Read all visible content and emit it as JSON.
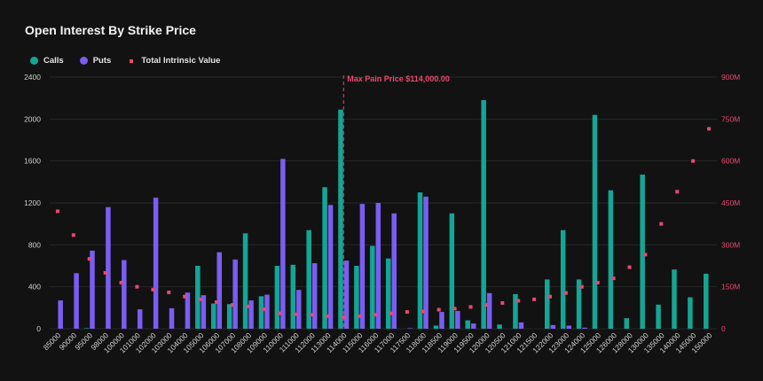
{
  "title": "Open Interest By Strike Price",
  "legend": {
    "calls": "Calls",
    "puts": "Puts",
    "intrinsic": "Total Intrinsic Value"
  },
  "colors": {
    "calls": "#14a595",
    "puts": "#7a5df2",
    "intrinsic": "#e8496f",
    "background": "#121212"
  },
  "max_pain": {
    "label": "Max Pain Price $114,000.00",
    "strike": "114000"
  },
  "chart_data": {
    "type": "bar",
    "title": "Open Interest By Strike Price",
    "categories": [
      "85000",
      "90000",
      "95000",
      "98000",
      "100000",
      "101000",
      "102000",
      "103000",
      "104000",
      "105000",
      "106000",
      "107000",
      "108000",
      "109000",
      "110000",
      "111000",
      "112000",
      "113000",
      "114000",
      "115000",
      "116000",
      "117000",
      "117500",
      "118000",
      "118500",
      "119000",
      "119500",
      "120000",
      "120500",
      "121000",
      "121500",
      "122000",
      "123000",
      "124000",
      "125000",
      "126000",
      "128000",
      "130000",
      "135000",
      "140000",
      "145000",
      "150000"
    ],
    "series": [
      {
        "name": "Calls",
        "axis": "left",
        "values": [
          0,
          0,
          5,
          0,
          0,
          0,
          0,
          0,
          0,
          600,
          240,
          235,
          910,
          310,
          600,
          610,
          940,
          1350,
          2090,
          600,
          790,
          670,
          0,
          1300,
          30,
          1100,
          80,
          2180,
          40,
          330,
          0,
          470,
          940,
          470,
          2040,
          1320,
          100,
          1470,
          230,
          565,
          300,
          525
        ]
      },
      {
        "name": "Puts",
        "axis": "left",
        "values": [
          270,
          530,
          745,
          1160,
          655,
          185,
          1250,
          195,
          345,
          320,
          730,
          660,
          270,
          325,
          1620,
          370,
          625,
          1180,
          650,
          1190,
          1200,
          1100,
          5,
          1260,
          160,
          170,
          50,
          340,
          0,
          60,
          0,
          35,
          30,
          10,
          0,
          0,
          0,
          0,
          0,
          0,
          0,
          0
        ]
      },
      {
        "name": "Total Intrinsic Value",
        "axis": "right",
        "type": "scatter",
        "values": [
          420,
          335,
          250,
          200,
          165,
          150,
          140,
          130,
          115,
          105,
          95,
          85,
          80,
          70,
          55,
          52,
          50,
          45,
          42,
          45,
          50,
          55,
          60,
          62,
          68,
          72,
          78,
          85,
          92,
          100,
          105,
          115,
          128,
          150,
          165,
          180,
          220,
          265,
          375,
          490,
          600,
          715
        ]
      }
    ],
    "ylim": [
      0,
      2400
    ],
    "y_ticks": [
      "0",
      "400",
      "800",
      "1200",
      "1600",
      "2000",
      "2400"
    ],
    "y2lim": [
      0,
      900
    ],
    "y2_ticks": [
      "0",
      "150M",
      "300M",
      "450M",
      "600M",
      "750M",
      "900M"
    ],
    "grid": true,
    "legend_position": "top-left"
  }
}
